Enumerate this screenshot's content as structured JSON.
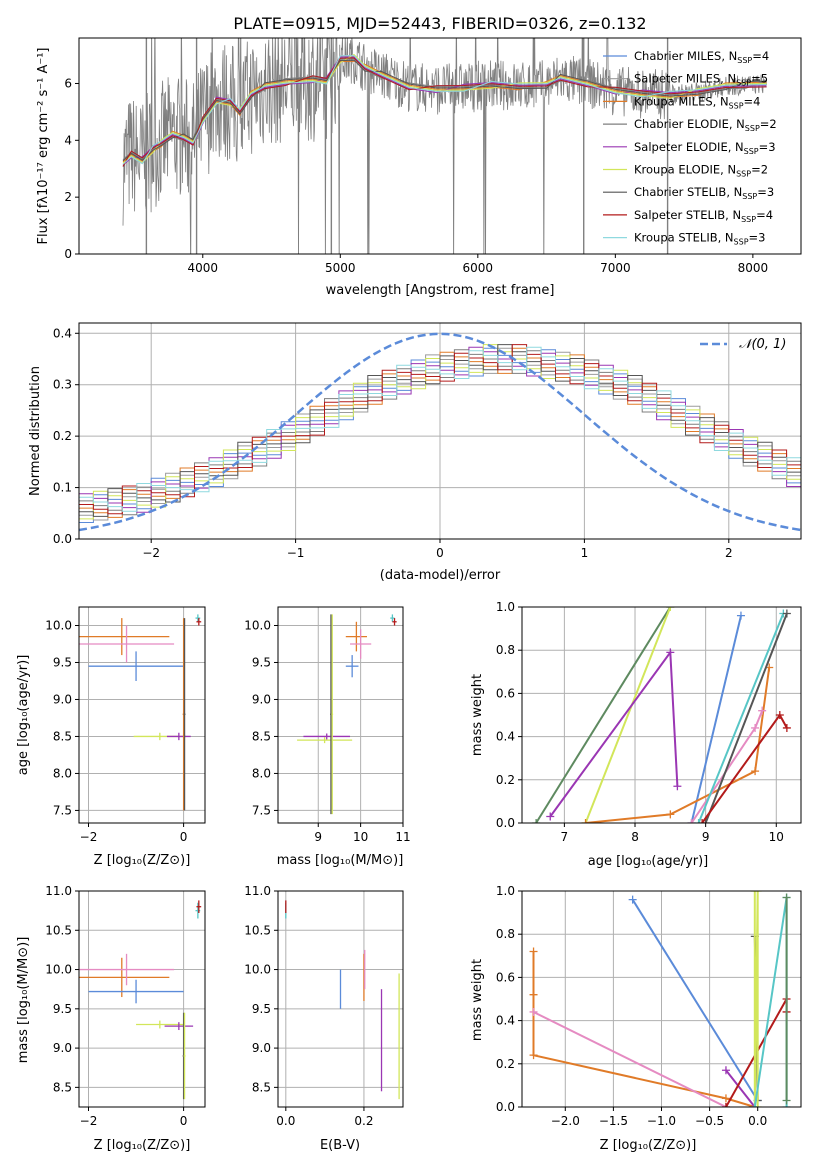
{
  "figure_title": "PLATE=0915, MJD=52443, FIBERID=0326, z=0.132",
  "colors": {
    "chabrier_miles": "#5b8bd9",
    "salpeter_miles": "#9b9b9b",
    "kroupa_miles": "#e07b28",
    "chabrier_elodie": "#7f7f7f",
    "salpeter_elodie": "#9a36b3",
    "kroupa_elodie": "#d2e65a",
    "chabrier_stelib": "#555555",
    "salpeter_stelib": "#b31b1b",
    "kroupa_stelib": "#8fd9df",
    "pink": "#e58bc2",
    "green": "#5e8a60",
    "teal": "#57c6c6",
    "normal_curve": "#5b8bd9",
    "grid": "#b0b0b0"
  },
  "chart_data": [
    {
      "type": "line",
      "xlabel": "wavelength [Angstrom, rest frame]",
      "ylabel": "Flux [fλ10⁻¹⁷ erg cm⁻² s⁻¹ A⁻¹]",
      "xlim": [
        3100,
        8350
      ],
      "ylim": [
        0,
        7.6
      ],
      "xticks": [
        4000,
        5000,
        6000,
        7000,
        8000
      ],
      "yticks": [
        0,
        2,
        4,
        6
      ],
      "grid": false,
      "legend_position": "top-right",
      "continuum_points": [
        [
          3420,
          3.2
        ],
        [
          3480,
          3.5
        ],
        [
          3560,
          3.3
        ],
        [
          3640,
          3.7
        ],
        [
          3700,
          3.9
        ],
        [
          3780,
          4.2
        ],
        [
          3860,
          4.1
        ],
        [
          3930,
          3.95
        ],
        [
          4000,
          4.7
        ],
        [
          4100,
          5.4
        ],
        [
          4200,
          5.35
        ],
        [
          4270,
          5.0
        ],
        [
          4350,
          5.6
        ],
        [
          4450,
          5.9
        ],
        [
          4600,
          6.05
        ],
        [
          4800,
          6.15
        ],
        [
          4900,
          6.1
        ],
        [
          5000,
          6.85
        ],
        [
          5100,
          6.9
        ],
        [
          5180,
          6.55
        ],
        [
          5300,
          6.3
        ],
        [
          5500,
          5.9
        ],
        [
          5700,
          5.8
        ],
        [
          5900,
          5.85
        ],
        [
          6100,
          5.95
        ],
        [
          6300,
          5.9
        ],
        [
          6500,
          5.95
        ],
        [
          6600,
          6.2
        ],
        [
          6800,
          6.0
        ],
        [
          7000,
          5.75
        ],
        [
          7200,
          5.65
        ],
        [
          7400,
          5.6
        ],
        [
          7600,
          5.7
        ],
        [
          7800,
          5.9
        ],
        [
          7950,
          5.95
        ],
        [
          8100,
          6.0
        ]
      ],
      "legend": [
        {
          "label": "Chabrier MILES, N",
          "sub": "SSP",
          "value": "=4",
          "color": "#5b8bd9"
        },
        {
          "label": "Salpeter MILES, N",
          "sub": "SSP",
          "value": "=5",
          "color": "#9b9b9b"
        },
        {
          "label": "Kroupa MILES, N",
          "sub": "SSP",
          "value": "=4",
          "color": "#e07b28"
        },
        {
          "label": "Chabrier ELODIE, N",
          "sub": "SSP",
          "value": "=2",
          "color": "#7f7f7f"
        },
        {
          "label": "Salpeter ELODIE, N",
          "sub": "SSP",
          "value": "=3",
          "color": "#9a36b3"
        },
        {
          "label": "Kroupa ELODIE, N",
          "sub": "SSP",
          "value": "=2",
          "color": "#d2e65a"
        },
        {
          "label": "Chabrier STELIB, N",
          "sub": "SSP",
          "value": "=3",
          "color": "#555555"
        },
        {
          "label": "Salpeter STELIB, N",
          "sub": "SSP",
          "value": "=4",
          "color": "#b31b1b"
        },
        {
          "label": "Kroupa STELIB, N",
          "sub": "SSP",
          "value": "=3",
          "color": "#8fd9df"
        }
      ]
    },
    {
      "type": "line",
      "xlabel": "(data-model)/error",
      "ylabel": "Normed distribution",
      "xlim": [
        -2.5,
        2.5
      ],
      "ylim": [
        0,
        0.42
      ],
      "xticks": [
        -2,
        -1,
        0,
        1,
        2
      ],
      "yticks": [
        0.0,
        0.1,
        0.2,
        0.3,
        0.4
      ],
      "grid": true,
      "legend_position": "top-right",
      "legend_label": "𝒩(0, 1)",
      "bin_width": 0.1,
      "bin_start": -2.5,
      "hist_envelope": [
        0.06,
        0.065,
        0.07,
        0.075,
        0.08,
        0.09,
        0.1,
        0.11,
        0.12,
        0.13,
        0.145,
        0.16,
        0.17,
        0.185,
        0.2,
        0.215,
        0.23,
        0.245,
        0.26,
        0.275,
        0.29,
        0.3,
        0.31,
        0.32,
        0.33,
        0.335,
        0.34,
        0.345,
        0.35,
        0.35,
        0.35,
        0.345,
        0.34,
        0.335,
        0.33,
        0.32,
        0.31,
        0.3,
        0.29,
        0.275,
        0.26,
        0.245,
        0.23,
        0.215,
        0.2,
        0.185,
        0.17,
        0.16,
        0.145,
        0.13,
        0.12,
        0.11,
        0.1,
        0.09,
        0.08,
        0.075,
        0.07,
        0.065,
        0.06,
        0.055
      ]
    },
    {
      "type": "scatter",
      "name": "age-vs-Z",
      "xlabel": "Z [log₁₀(Z/Z⊙)]",
      "ylabel": "age  [log₁₀(age/yr)]",
      "xlim": [
        -2.2,
        0.45
      ],
      "ylim": [
        7.33,
        10.25
      ],
      "xticks": [
        -2,
        0
      ],
      "yticks": [
        7.5,
        8.0,
        8.5,
        9.0,
        9.5,
        10.0
      ],
      "grid": true,
      "points": [
        {
          "x": -1.3,
          "y": 9.85,
          "xerr": 1.0,
          "yerr": 0.25,
          "color": "#e07b28"
        },
        {
          "x": -1.2,
          "y": 9.75,
          "xerr": 1.0,
          "yerr": 0.25,
          "color": "#e58bc2"
        },
        {
          "x": -1.0,
          "y": 9.45,
          "xerr": 1.0,
          "yerr": 0.2,
          "color": "#5b8bd9"
        },
        {
          "x": -0.5,
          "y": 8.5,
          "xerr": 0.55,
          "yerr": 0.05,
          "color": "#d2e65a"
        },
        {
          "x": -0.1,
          "y": 8.5,
          "xerr": 0.25,
          "yerr": 0.05,
          "color": "#9a36b3"
        },
        {
          "x": 0.0,
          "y": 8.8,
          "xerr": 0.02,
          "yerr": 1.3,
          "color": "#e07b28"
        },
        {
          "x": 0.02,
          "y": 8.8,
          "xerr": 0.02,
          "yerr": 1.3,
          "color": "#555555"
        },
        {
          "x": 0.3,
          "y": 10.1,
          "xerr": 0.05,
          "yerr": 0.05,
          "color": "#57c6c6"
        },
        {
          "x": 0.32,
          "y": 10.05,
          "xerr": 0.05,
          "yerr": 0.05,
          "color": "#b31b1b"
        }
      ]
    },
    {
      "type": "scatter",
      "name": "age-vs-mass",
      "xlabel": "mass [log₁₀(M/M⊙)]",
      "ylabel": "",
      "xlim": [
        8.05,
        11.0
      ],
      "ylim": [
        7.33,
        10.25
      ],
      "xticks": [
        9,
        10,
        11
      ],
      "yticks": [
        7.5,
        8.0,
        8.5,
        9.0,
        9.5,
        10.0
      ],
      "grid": true,
      "points": [
        {
          "x": 9.15,
          "y": 8.45,
          "xerr": 0.65,
          "yerr": 0.04,
          "color": "#d2e65a"
        },
        {
          "x": 9.2,
          "y": 8.5,
          "xerr": 0.55,
          "yerr": 0.04,
          "color": "#9a36b3"
        },
        {
          "x": 9.3,
          "y": 8.8,
          "xerr": 0.02,
          "yerr": 1.35,
          "color": "#555555"
        },
        {
          "x": 9.33,
          "y": 8.8,
          "xerr": 0.02,
          "yerr": 1.35,
          "color": "#d2e65a"
        },
        {
          "x": 9.9,
          "y": 9.85,
          "xerr": 0.25,
          "yerr": 0.2,
          "color": "#e07b28"
        },
        {
          "x": 10.0,
          "y": 9.75,
          "xerr": 0.25,
          "yerr": 0.2,
          "color": "#e58bc2"
        },
        {
          "x": 9.8,
          "y": 9.45,
          "xerr": 0.15,
          "yerr": 0.15,
          "color": "#5b8bd9"
        },
        {
          "x": 10.75,
          "y": 10.1,
          "xerr": 0.05,
          "yerr": 0.05,
          "color": "#57c6c6"
        },
        {
          "x": 10.8,
          "y": 10.05,
          "xerr": 0.05,
          "yerr": 0.05,
          "color": "#b31b1b"
        }
      ]
    },
    {
      "type": "line",
      "name": "massweight-vs-age",
      "xlabel": "age  [log₁₀(age/yr)]",
      "ylabel": "mass weight",
      "xlim": [
        6.4,
        10.35
      ],
      "ylim": [
        0,
        1.0
      ],
      "xticks": [
        7,
        8,
        9,
        10
      ],
      "yticks": [
        0.0,
        0.2,
        0.4,
        0.6,
        0.8,
        1.0
      ],
      "grid": true,
      "series": [
        {
          "color": "#5e8a60",
          "x": [
            6.6,
            8.5
          ],
          "y": [
            0.0,
            1.0
          ]
        },
        {
          "color": "#d2e65a",
          "x": [
            7.3,
            8.5
          ],
          "y": [
            0.0,
            1.0
          ]
        },
        {
          "color": "#9a36b3",
          "x": [
            6.8,
            8.5,
            8.6
          ],
          "y": [
            0.03,
            0.79,
            0.17
          ]
        },
        {
          "color": "#5b8bd9",
          "x": [
            8.8,
            9.5
          ],
          "y": [
            0.0,
            0.96
          ]
        },
        {
          "color": "#e07b28",
          "x": [
            7.3,
            8.5,
            9.7,
            9.9
          ],
          "y": [
            0.0,
            0.04,
            0.24,
            0.72
          ]
        },
        {
          "color": "#e58bc2",
          "x": [
            8.8,
            9.7,
            9.8
          ],
          "y": [
            0.0,
            0.44,
            0.52
          ]
        },
        {
          "color": "#57c6c6",
          "x": [
            8.9,
            10.1
          ],
          "y": [
            0.0,
            0.97
          ]
        },
        {
          "color": "#555555",
          "x": [
            9.0,
            10.15
          ],
          "y": [
            0.0,
            0.97
          ]
        },
        {
          "color": "#b31b1b",
          "x": [
            8.95,
            10.05,
            10.15
          ],
          "y": [
            0.0,
            0.5,
            0.44
          ]
        }
      ]
    },
    {
      "type": "scatter",
      "name": "mass-vs-Z",
      "xlabel": "Z [log₁₀(Z/Z⊙)]",
      "ylabel": "mass [log₁₀(M/M⊙)]",
      "xlim": [
        -2.2,
        0.45
      ],
      "ylim": [
        8.25,
        11.0
      ],
      "xticks": [
        -2,
        0
      ],
      "yticks": [
        8.5,
        9.0,
        9.5,
        10.0,
        10.5,
        11.0
      ],
      "grid": true,
      "points": [
        {
          "x": -1.3,
          "y": 9.9,
          "xerr": 1.0,
          "yerr": 0.25,
          "color": "#e07b28"
        },
        {
          "x": -1.2,
          "y": 10.0,
          "xerr": 1.0,
          "yerr": 0.2,
          "color": "#e58bc2"
        },
        {
          "x": -1.0,
          "y": 9.72,
          "xerr": 1.0,
          "yerr": 0.15,
          "color": "#5b8bd9"
        },
        {
          "x": -0.5,
          "y": 9.3,
          "xerr": 0.5,
          "yerr": 0.05,
          "color": "#d2e65a"
        },
        {
          "x": -0.1,
          "y": 9.28,
          "xerr": 0.3,
          "yerr": 0.05,
          "color": "#9a36b3"
        },
        {
          "x": 0.0,
          "y": 8.9,
          "xerr": 0.02,
          "yerr": 0.55,
          "color": "#555555"
        },
        {
          "x": 0.02,
          "y": 8.9,
          "xerr": 0.02,
          "yerr": 0.55,
          "color": "#d2e65a"
        },
        {
          "x": 0.3,
          "y": 10.75,
          "xerr": 0.05,
          "yerr": 0.1,
          "color": "#57c6c6"
        },
        {
          "x": 0.32,
          "y": 10.8,
          "xerr": 0.05,
          "yerr": 0.08,
          "color": "#b31b1b"
        }
      ]
    },
    {
      "type": "scatter",
      "name": "mass-vs-EBV",
      "xlabel": "E(B-V)",
      "ylabel": "",
      "xlim": [
        -0.02,
        0.3
      ],
      "ylim": [
        8.25,
        11.0
      ],
      "xticks": [
        0.0,
        0.2
      ],
      "yticks": [
        8.5,
        9.0,
        9.5,
        10.0,
        10.5,
        11.0
      ],
      "grid": true,
      "points": [
        {
          "x": 0.0,
          "y": 10.75,
          "xerr": 0.0,
          "yerr": 0.1,
          "color": "#57c6c6"
        },
        {
          "x": 0.0,
          "y": 10.8,
          "xerr": 0.0,
          "yerr": 0.08,
          "color": "#b31b1b"
        },
        {
          "x": 0.14,
          "y": 9.75,
          "xerr": 0.0,
          "yerr": 0.25,
          "color": "#5b8bd9"
        },
        {
          "x": 0.2,
          "y": 9.9,
          "xerr": 0.0,
          "yerr": 0.3,
          "color": "#e07b28"
        },
        {
          "x": 0.202,
          "y": 10.0,
          "xerr": 0.0,
          "yerr": 0.25,
          "color": "#e58bc2"
        },
        {
          "x": 0.245,
          "y": 9.1,
          "xerr": 0.0,
          "yerr": 0.65,
          "color": "#9a36b3"
        },
        {
          "x": 0.29,
          "y": 9.15,
          "xerr": 0.0,
          "yerr": 0.8,
          "color": "#d2e65a"
        }
      ]
    },
    {
      "type": "line",
      "name": "massweight-vs-Z",
      "xlabel": "Z [log₁₀(Z/Z⊙)]",
      "ylabel": "mass weight",
      "xlim": [
        -2.45,
        0.45
      ],
      "ylim": [
        0,
        1.0
      ],
      "xticks": [
        -2.0,
        -1.5,
        -1.0,
        -0.5,
        0.0
      ],
      "yticks": [
        0.0,
        0.2,
        0.4,
        0.6,
        0.8,
        1.0
      ],
      "grid": true,
      "series": [
        {
          "color": "#5b8bd9",
          "x": [
            -1.3,
            0.0
          ],
          "y": [
            0.96,
            0.03
          ]
        },
        {
          "color": "#e07b28",
          "x": [
            -2.33,
            -2.33,
            -2.33,
            -0.33,
            -0.03
          ],
          "y": [
            0.72,
            0.52,
            0.24,
            0.04,
            0.0
          ]
        },
        {
          "color": "#e58bc2",
          "x": [
            -2.33,
            -0.33
          ],
          "y": [
            0.44,
            0.0
          ]
        },
        {
          "color": "#9a36b3",
          "x": [
            -0.33,
            -0.03
          ],
          "y": [
            0.17,
            0.0
          ]
        },
        {
          "color": "#b31b1b",
          "x": [
            -0.33,
            0.3,
            0.3
          ],
          "y": [
            0.0,
            0.5,
            0.44
          ]
        },
        {
          "color": "#555555",
          "x": [
            -0.03,
            0.0
          ],
          "y": [
            0.79,
            0.03
          ]
        },
        {
          "color": "#d2e65a",
          "x": [
            -0.03,
            -0.03,
            0.0,
            0.0
          ],
          "y": [
            1.0,
            0.0,
            1.0,
            0.0
          ]
        },
        {
          "color": "#57c6c6",
          "x": [
            -0.03,
            0.3,
            0.3
          ],
          "y": [
            0.0,
            0.97,
            0.0
          ]
        },
        {
          "color": "#5e8a60",
          "x": [
            0.3,
            0.3
          ],
          "y": [
            0.97,
            0.03
          ]
        }
      ]
    }
  ]
}
